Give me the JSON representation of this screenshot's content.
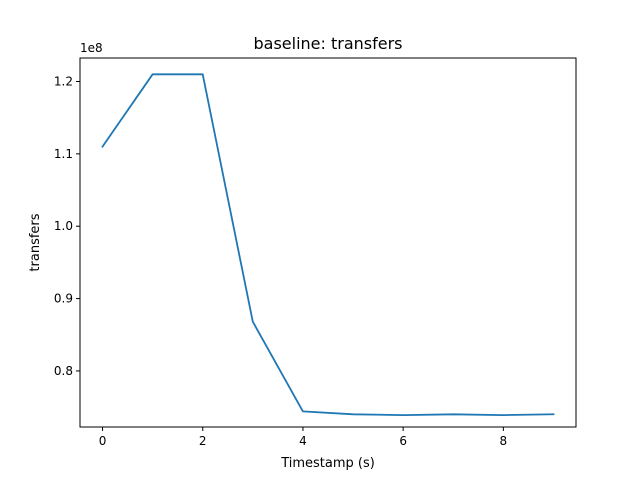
{
  "chart_data": {
    "type": "line",
    "title": "baseline: transfers",
    "xlabel": "Timestamp (s)",
    "ylabel": "transfers",
    "y_offset_label": "1e8",
    "x": [
      0,
      1,
      2,
      3,
      4,
      5,
      6,
      7,
      8,
      9
    ],
    "series": [
      {
        "values": [
          1.11,
          1.21,
          1.21,
          0.868,
          0.744,
          0.74,
          0.739,
          0.74,
          0.739,
          0.74
        ]
      }
    ],
    "xlim": [
      -0.45,
      9.45
    ],
    "ylim": [
      0.7225,
      1.2325
    ],
    "xticks": [
      0,
      2,
      4,
      6,
      8
    ],
    "xtick_labels": [
      "0",
      "2",
      "4",
      "6",
      "8"
    ],
    "yticks": [
      0.8,
      0.9,
      1.0,
      1.1,
      1.2
    ],
    "ytick_labels": [
      "0.8",
      "0.9",
      "1.0",
      "1.1",
      "1.2"
    ],
    "grid": false,
    "colors": {
      "line": "#1f77b4",
      "axes": "#000000",
      "background": "#ffffff"
    }
  }
}
